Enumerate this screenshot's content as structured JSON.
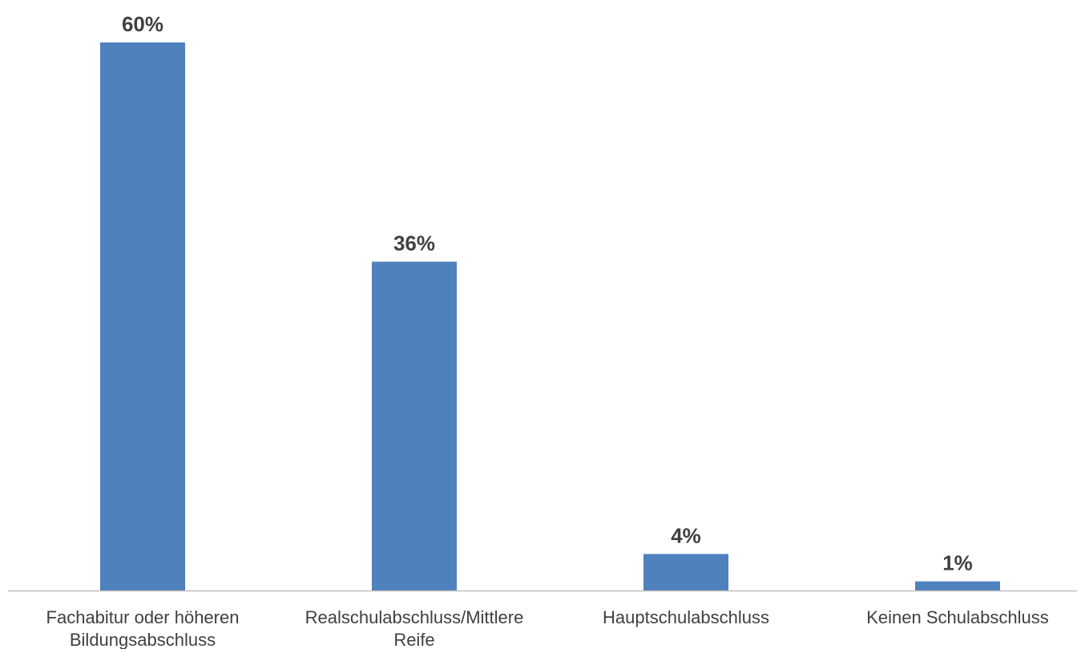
{
  "chart_data": {
    "type": "bar",
    "categories": [
      [
        "Fachabitur oder höheren",
        "Bildungsabschluss"
      ],
      [
        "Realschulabschluss/Mittlere",
        "Reife"
      ],
      [
        "Hauptschulabschluss"
      ],
      [
        "Keinen Schulabschluss"
      ]
    ],
    "values": [
      60,
      36,
      4,
      1
    ],
    "value_labels": [
      "60%",
      "36%",
      "4%",
      "1%"
    ],
    "unit": "%",
    "ylim": [
      0,
      60
    ],
    "grid": false,
    "legend": "none",
    "bar_color": "#4F81BD",
    "axis_color": "#BFBFBF",
    "text_color": "#404040"
  }
}
